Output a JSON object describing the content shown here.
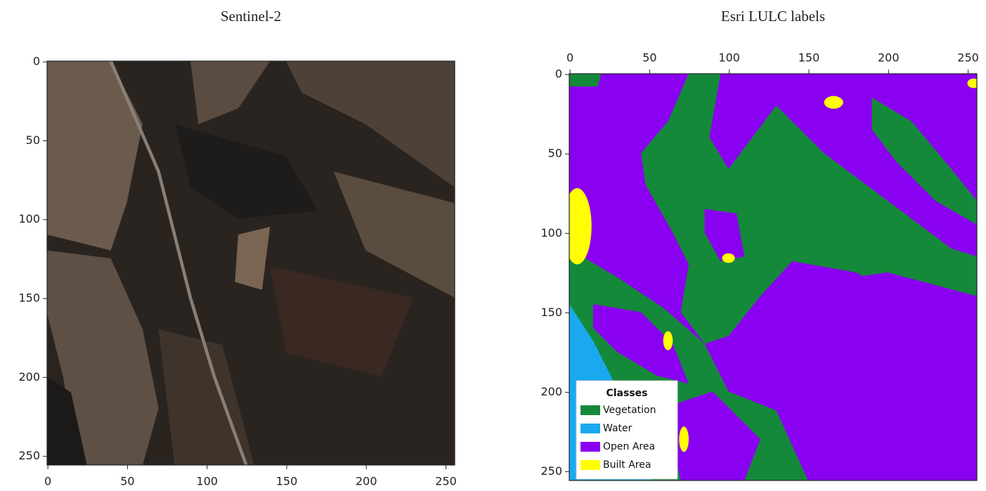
{
  "chart_data": [
    {
      "type": "image",
      "title": "Sentinel-2",
      "xlim": [
        -0.5,
        255.5
      ],
      "ylim": [
        255.5,
        -0.5
      ],
      "xticks": [
        0,
        50,
        100,
        150,
        200,
        250
      ],
      "yticks": [
        0,
        50,
        100,
        150,
        200,
        250
      ]
    },
    {
      "type": "image",
      "title": "Esri LULC labels",
      "xlim": [
        -0.5,
        255.5
      ],
      "ylim": [
        255.5,
        -0.5
      ],
      "xticks": [
        0,
        50,
        100,
        150,
        200,
        250
      ],
      "yticks": [
        0,
        50,
        100,
        150,
        200,
        250
      ],
      "legend_title": "Classes",
      "classes": [
        {
          "name": "Vegetation",
          "color": "#15893a"
        },
        {
          "name": "Water",
          "color": "#1aa9ee"
        },
        {
          "name": "Open Area",
          "color": "#8a00f0"
        },
        {
          "name": "Built Area",
          "color": "#ffff00"
        }
      ]
    }
  ]
}
